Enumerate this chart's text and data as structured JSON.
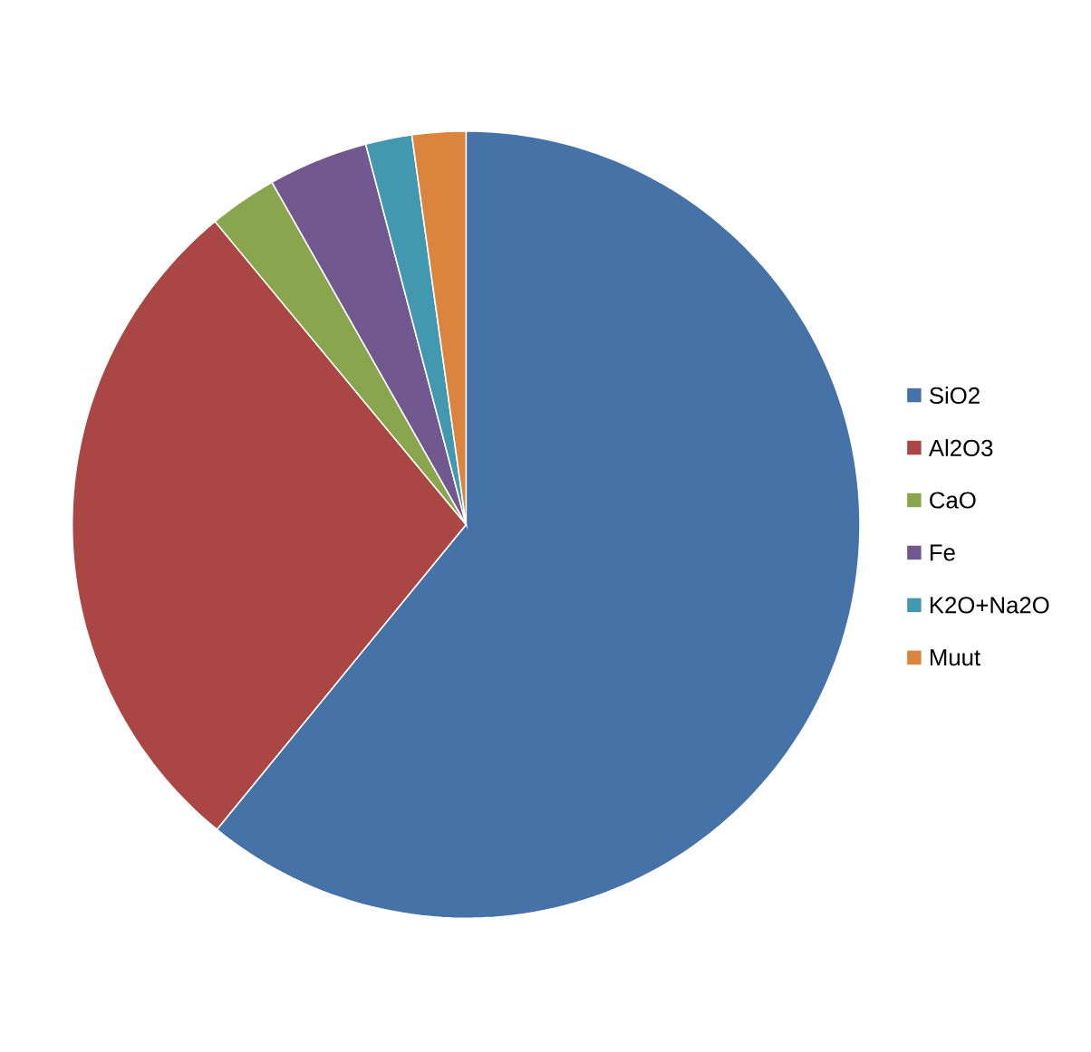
{
  "chart_data": {
    "type": "pie",
    "categories": [
      "SiO2",
      "Al2O3",
      "CaO",
      "Fe",
      "K2O+Na2O",
      "Muut"
    ],
    "values": [
      60.9,
      28.1,
      2.8,
      4.1,
      1.9,
      2.2
    ],
    "colors": [
      "#4572a7",
      "#aa4643",
      "#89a54e",
      "#71588f",
      "#4198af",
      "#db843d"
    ],
    "legend": "right"
  }
}
